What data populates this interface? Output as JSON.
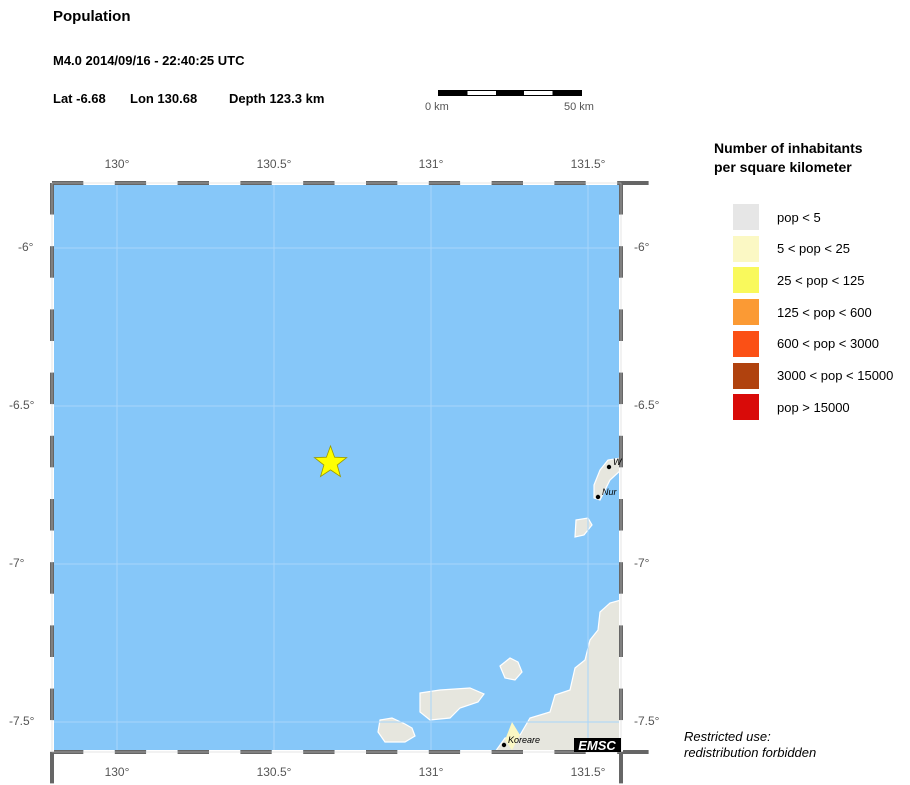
{
  "header": {
    "title": "Population",
    "event": "M4.0  2014/09/16 - 22:40:25 UTC",
    "lat": "Lat -6.68",
    "lon": "Lon 130.68",
    "depth": "Depth 123.3 km"
  },
  "scalebar": {
    "start": "0 km",
    "end": "50 km"
  },
  "axes": {
    "lon_ticks": [
      "130°",
      "130.5°",
      "131°",
      "131.5°"
    ],
    "lat_ticks": [
      "-6°",
      "-6.5°",
      "-7°",
      "-7.5°"
    ],
    "lon_range": [
      129.8,
      131.6
    ],
    "lat_range": [
      -5.8,
      -7.6
    ]
  },
  "epicenter": {
    "lat": -6.68,
    "lon": 130.68,
    "color": "#ffff00"
  },
  "places": [
    "W",
    "Nur",
    "Koreare"
  ],
  "logo": "EMSC",
  "legend": {
    "title_line1": "Number of inhabitants",
    "title_line2": "per square kilometer",
    "items": [
      {
        "label": "pop < 5",
        "color": "#e6e6e6"
      },
      {
        "label": "5 < pop < 25",
        "color": "#fbf8c4"
      },
      {
        "label": "25 < pop < 125",
        "color": "#f9f95c"
      },
      {
        "label": "125 < pop < 600",
        "color": "#fb9a34"
      },
      {
        "label": "600 < pop < 3000",
        "color": "#fb5015"
      },
      {
        "label": "3000 < pop < 15000",
        "color": "#b0420e"
      },
      {
        "label": "pop > 15000",
        "color": "#d90b09"
      }
    ]
  },
  "note": {
    "line1": "Restricted use:",
    "line2": "redistribution forbidden"
  },
  "colors": {
    "sea": "#86c7f9",
    "land": "#e6e6de"
  }
}
